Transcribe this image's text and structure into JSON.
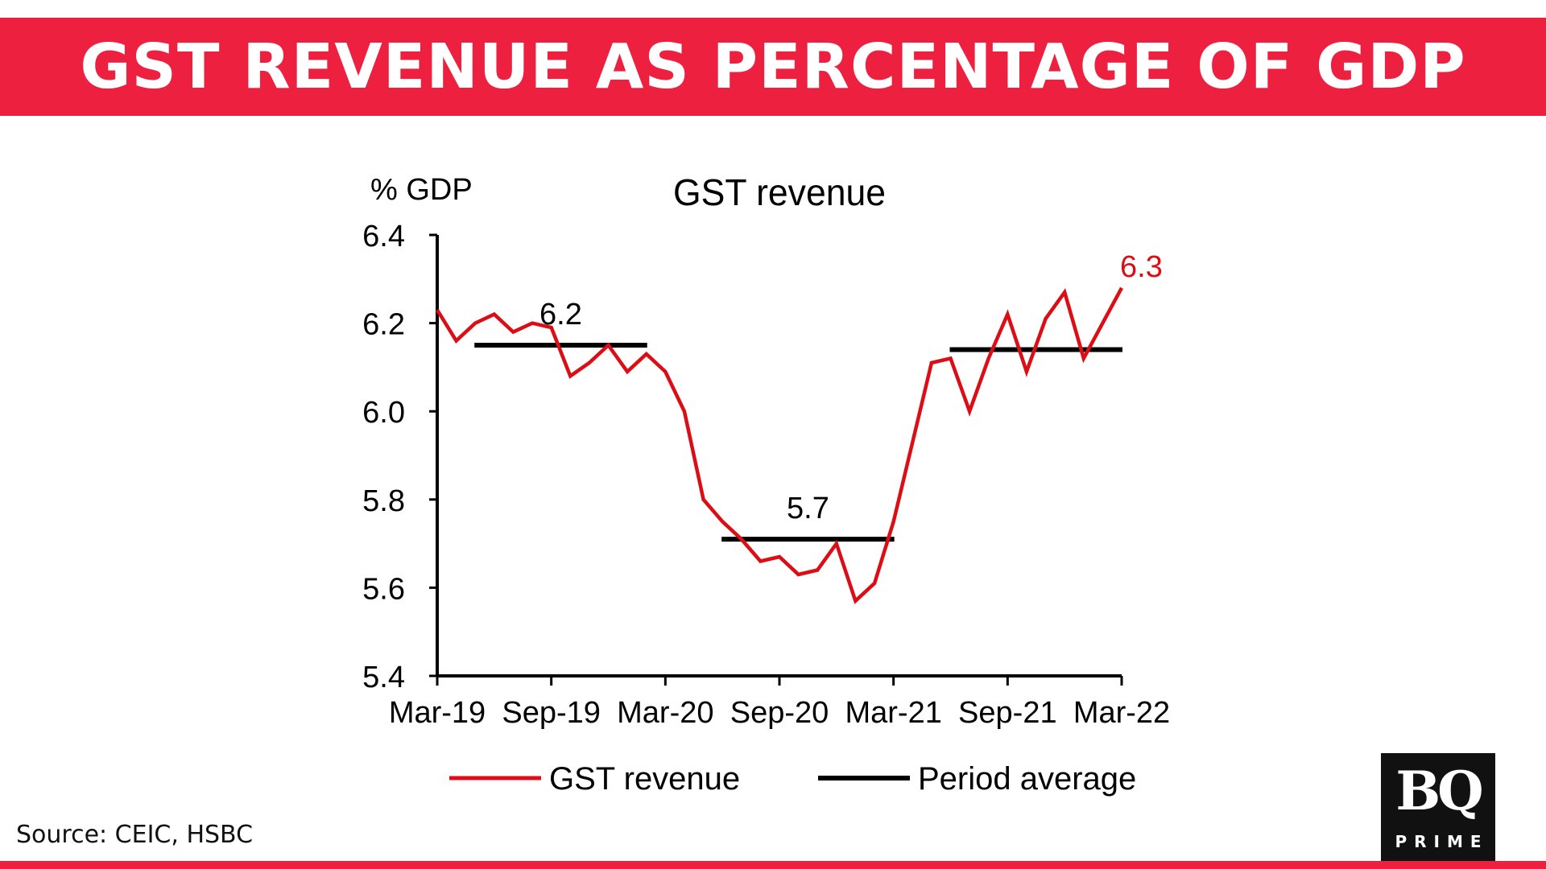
{
  "header": {
    "title": "GST REVENUE AS PERCENTAGE OF GDP"
  },
  "footer": {
    "source": "Source: CEIC, HSBC"
  },
  "logo": {
    "main": "BQ",
    "sub": "PRIME"
  },
  "colors": {
    "banner": "#ed2040",
    "series_line": "#dc0d15",
    "average_line": "#000000",
    "logo_bg": "#111111"
  },
  "chart_data": {
    "type": "line",
    "title": "GST revenue",
    "ylabel": "% GDP",
    "xlabel": "",
    "ylim": [
      5.4,
      6.4
    ],
    "yticks": [
      "6.4",
      "6.2",
      "6.0",
      "5.8",
      "5.6",
      "5.4"
    ],
    "xtick_labels": [
      "Mar-19",
      "Sep-19",
      "Mar-20",
      "Sep-20",
      "Mar-21",
      "Sep-21",
      "Mar-22"
    ],
    "grid": false,
    "legend_position": "bottom",
    "series": [
      {
        "name": "GST revenue",
        "x": [
          "Mar-19",
          "Apr-19",
          "May-19",
          "Jun-19",
          "Jul-19",
          "Aug-19",
          "Sep-19",
          "Oct-19",
          "Nov-19",
          "Dec-19",
          "Jan-20",
          "Feb-20",
          "Mar-20",
          "Apr-20",
          "May-20",
          "Jun-20",
          "Jul-20",
          "Aug-20",
          "Sep-20",
          "Oct-20",
          "Nov-20",
          "Dec-20",
          "Jan-21",
          "Feb-21",
          "Mar-21",
          "Apr-21",
          "May-21",
          "Jun-21",
          "Jul-21",
          "Aug-21",
          "Sep-21",
          "Oct-21",
          "Nov-21",
          "Dec-21",
          "Jan-22",
          "Feb-22",
          "Mar-22"
        ],
        "values": [
          6.23,
          6.16,
          6.2,
          6.22,
          6.18,
          6.2,
          6.19,
          6.08,
          6.11,
          6.15,
          6.09,
          6.13,
          6.09,
          6.0,
          5.8,
          5.75,
          5.71,
          5.66,
          5.67,
          5.63,
          5.64,
          5.7,
          5.57,
          5.61,
          5.75,
          5.93,
          6.11,
          6.12,
          6.0,
          6.12,
          6.22,
          6.09,
          6.21,
          6.27,
          6.12,
          6.2,
          6.28
        ]
      },
      {
        "name": "Period average",
        "segments": [
          {
            "start": "May-19",
            "end": "Feb-20",
            "value": 6.15,
            "label": "6.2"
          },
          {
            "start": "Jun-20",
            "end": "Mar-21",
            "value": 5.71,
            "label": "5.7"
          },
          {
            "start": "Jun-21",
            "end": "Mar-22",
            "value": 6.14,
            "label": ""
          }
        ]
      }
    ],
    "annotations": [
      {
        "x": "Mar-22",
        "value": 6.28,
        "text": "6.3"
      }
    ]
  }
}
